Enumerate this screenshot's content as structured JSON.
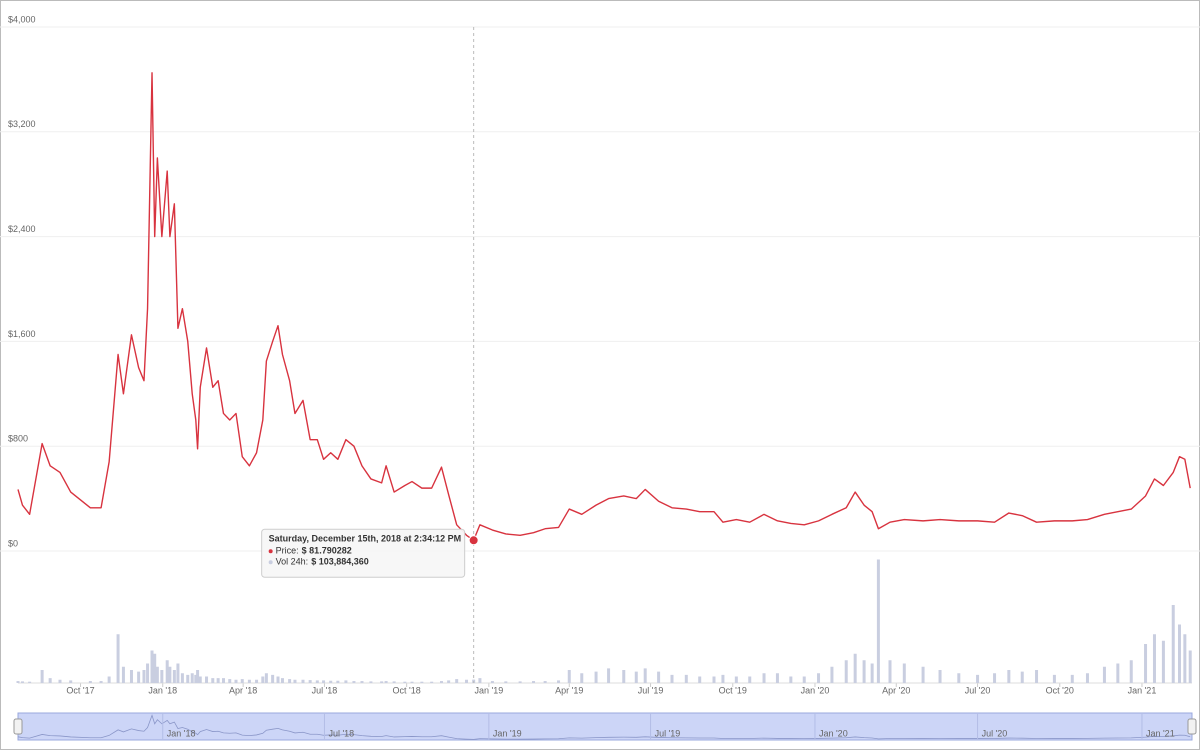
{
  "chart_data": {
    "type": "line",
    "x": [
      "2017-07-23",
      "2017-07-28",
      "2017-08-05",
      "2017-08-19",
      "2017-08-28",
      "2017-09-08",
      "2017-09-20",
      "2017-10-12",
      "2017-10-24",
      "2017-11-02",
      "2017-11-12",
      "2017-11-18",
      "2017-11-27",
      "2017-12-05",
      "2017-12-11",
      "2017-12-15",
      "2017-12-20",
      "2017-12-23",
      "2017-12-26",
      "2017-12-31",
      "2018-01-06",
      "2018-01-09",
      "2018-01-14",
      "2018-01-18",
      "2018-01-23",
      "2018-01-29",
      "2018-02-03",
      "2018-02-07",
      "2018-02-09",
      "2018-02-12",
      "2018-02-19",
      "2018-02-26",
      "2018-03-04",
      "2018-03-10",
      "2018-03-17",
      "2018-03-24",
      "2018-03-31",
      "2018-04-08",
      "2018-04-16",
      "2018-04-23",
      "2018-04-27",
      "2018-05-04",
      "2018-05-10",
      "2018-05-15",
      "2018-05-23",
      "2018-05-29",
      "2018-06-07",
      "2018-06-15",
      "2018-06-23",
      "2018-06-30",
      "2018-07-08",
      "2018-07-16",
      "2018-07-25",
      "2018-08-03",
      "2018-08-12",
      "2018-08-22",
      "2018-09-03",
      "2018-09-08",
      "2018-09-17",
      "2018-09-29",
      "2018-10-07",
      "2018-10-18",
      "2018-10-29",
      "2018-11-09",
      "2018-11-17",
      "2018-11-26",
      "2018-12-07",
      "2018-12-15",
      "2018-12-22",
      "2019-01-05",
      "2019-01-20",
      "2019-02-05",
      "2019-02-20",
      "2019-03-05",
      "2019-03-20",
      "2019-04-01",
      "2019-04-15",
      "2019-05-01",
      "2019-05-15",
      "2019-06-01",
      "2019-06-15",
      "2019-06-25",
      "2019-07-10",
      "2019-07-25",
      "2019-08-10",
      "2019-08-25",
      "2019-09-10",
      "2019-09-20",
      "2019-10-05",
      "2019-10-20",
      "2019-11-05",
      "2019-11-20",
      "2019-12-05",
      "2019-12-20",
      "2020-01-05",
      "2020-01-20",
      "2020-02-05",
      "2020-02-15",
      "2020-02-25",
      "2020-03-05",
      "2020-03-12",
      "2020-03-25",
      "2020-04-10",
      "2020-05-01",
      "2020-05-20",
      "2020-06-10",
      "2020-07-01",
      "2020-07-20",
      "2020-08-05",
      "2020-08-20",
      "2020-09-05",
      "2020-09-25",
      "2020-10-15",
      "2020-11-01",
      "2020-11-20",
      "2020-12-05",
      "2020-12-20",
      "2021-01-05",
      "2021-01-15",
      "2021-01-25",
      "2021-02-05",
      "2021-02-12",
      "2021-02-18",
      "2021-02-24"
    ],
    "series": [
      {
        "color": "#d8333f",
        "values": [
          470,
          350,
          280,
          820,
          650,
          600,
          450,
          330,
          330,
          680,
          1500,
          1200,
          1650,
          1400,
          1300,
          1850,
          3650,
          2400,
          3000,
          2400,
          2900,
          2400,
          2650,
          1700,
          1850,
          1600,
          1200,
          1000,
          780,
          1250,
          1550,
          1250,
          1300,
          1050,
          1000,
          1050,
          720,
          650,
          750,
          1000,
          1450,
          1600,
          1720,
          1500,
          1300,
          1050,
          1150,
          850,
          850,
          700,
          750,
          700,
          850,
          800,
          650,
          550,
          520,
          650,
          450,
          500,
          530,
          480,
          480,
          640,
          430,
          200,
          120,
          81.790282,
          200,
          160,
          130,
          120,
          140,
          170,
          180,
          320,
          280,
          350,
          400,
          420,
          400,
          470,
          380,
          330,
          320,
          300,
          300,
          220,
          240,
          220,
          280,
          230,
          210,
          200,
          230,
          280,
          330,
          450,
          350,
          300,
          170,
          220,
          240,
          230,
          240,
          230,
          230,
          220,
          290,
          270,
          220,
          230,
          230,
          240,
          280,
          300,
          320,
          420,
          550,
          500,
          600,
          720,
          700,
          480
        ]
      },
      {
        "color": "#c9cee0",
        "axis": "y2",
        "values": [
          60000000,
          50000000,
          40000000,
          400000000,
          150000000,
          100000000,
          80000000,
          60000000,
          60000000,
          200000000,
          1500000000,
          500000000,
          400000000,
          350000000,
          400000000,
          600000000,
          1000000000,
          900000000,
          500000000,
          400000000,
          700000000,
          500000000,
          400000000,
          600000000,
          300000000,
          250000000,
          300000000,
          250000000,
          400000000,
          200000000,
          200000000,
          150000000,
          150000000,
          150000000,
          120000000,
          100000000,
          120000000,
          100000000,
          100000000,
          200000000,
          300000000,
          250000000,
          200000000,
          150000000,
          120000000,
          100000000,
          100000000,
          90000000,
          80000000,
          80000000,
          70000000,
          70000000,
          80000000,
          60000000,
          60000000,
          50000000,
          50000000,
          60000000,
          50000000,
          40000000,
          40000000,
          40000000,
          40000000,
          60000000,
          80000000,
          120000000,
          100000000,
          103884360,
          150000000,
          60000000,
          50000000,
          50000000,
          60000000,
          60000000,
          80000000,
          400000000,
          300000000,
          350000000,
          450000000,
          400000000,
          350000000,
          450000000,
          350000000,
          250000000,
          250000000,
          200000000,
          200000000,
          250000000,
          200000000,
          200000000,
          300000000,
          300000000,
          200000000,
          200000000,
          300000000,
          500000000,
          700000000,
          900000000,
          700000000,
          600000000,
          3800000000,
          700000000,
          600000000,
          500000000,
          400000000,
          300000000,
          250000000,
          300000000,
          400000000,
          350000000,
          400000000,
          250000000,
          250000000,
          300000000,
          500000000,
          600000000,
          700000000,
          1200000000,
          1500000000,
          1300000000,
          2400000000,
          1800000000,
          1500000000,
          1000000000
        ]
      }
    ],
    "xlim": [
      "2017-07-23",
      "2021-02-26"
    ],
    "ylim": [
      0,
      4000
    ],
    "yticks": [
      {
        "value": 0,
        "label": "$0"
      },
      {
        "value": 800,
        "label": "$800"
      },
      {
        "value": 1600,
        "label": "$1,600"
      },
      {
        "value": 2400,
        "label": "$2,400"
      },
      {
        "value": 3200,
        "label": "$3,200"
      },
      {
        "value": 4000,
        "label": "$4,000"
      }
    ],
    "y2lim": [
      0,
      4000000000
    ],
    "xticks": [
      {
        "value": "2017-10-01",
        "label": "Oct '17"
      },
      {
        "value": "2018-01-01",
        "label": "Jan '18"
      },
      {
        "value": "2018-04-01",
        "label": "Apr '18"
      },
      {
        "value": "2018-07-01",
        "label": "Jul '18"
      },
      {
        "value": "2018-10-01",
        "label": "Oct '18"
      },
      {
        "value": "2019-01-01",
        "label": "Jan '19"
      },
      {
        "value": "2019-04-01",
        "label": "Apr '19"
      },
      {
        "value": "2019-07-01",
        "label": "Jul '19"
      },
      {
        "value": "2019-10-01",
        "label": "Oct '19"
      },
      {
        "value": "2020-01-01",
        "label": "Jan '20"
      },
      {
        "value": "2020-04-01",
        "label": "Apr '20"
      },
      {
        "value": "2020-07-01",
        "label": "Jul '20"
      },
      {
        "value": "2020-10-01",
        "label": "Oct '20"
      },
      {
        "value": "2021-01-01",
        "label": "Jan '21"
      }
    ],
    "grid": true,
    "navigator": {
      "xticks": [
        {
          "value": "2018-01-01",
          "label": "Jan '18"
        },
        {
          "value": "2018-07-01",
          "label": "Jul '18"
        },
        {
          "value": "2019-01-01",
          "label": "Jan '19"
        },
        {
          "value": "2019-07-01",
          "label": "Jul '19"
        },
        {
          "value": "2020-01-01",
          "label": "Jan '20"
        },
        {
          "value": "2020-07-01",
          "label": "Jul '20"
        },
        {
          "value": "2021-01-01",
          "label": "Jan '21"
        }
      ]
    },
    "tooltip": {
      "title": "Saturday, December 15th, 2018 at 2:34:12 PM",
      "rows": [
        {
          "name": "Price:",
          "value": 81.790282,
          "value_label": "$ 81.790282"
        },
        {
          "name": "Vol 24h:",
          "value": 103884360,
          "value_label": "$ 103,884,360"
        }
      ]
    }
  }
}
